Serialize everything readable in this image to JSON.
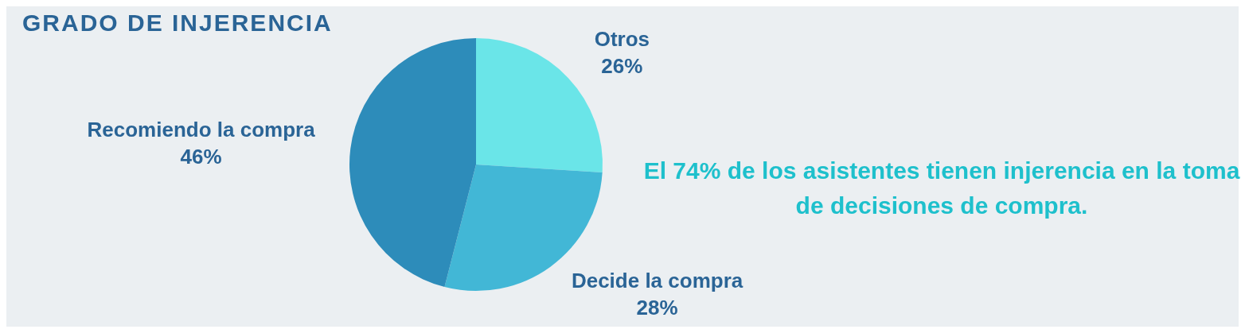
{
  "chart_data": {
    "type": "pie",
    "title": "GRADO DE INJERENCIA",
    "categories": [
      "Otros",
      "Decide la compra",
      "Recomiendo la compra"
    ],
    "values": [
      26,
      28,
      46
    ],
    "colors": [
      "#6ae5e8",
      "#42b7d6",
      "#2d8cba"
    ],
    "value_labels": [
      "26%",
      "28%",
      "46%"
    ],
    "annotations": [
      "El 74% de los asistentes tienen injerencia en la toma de decisiones de compra."
    ],
    "legend": false
  }
}
